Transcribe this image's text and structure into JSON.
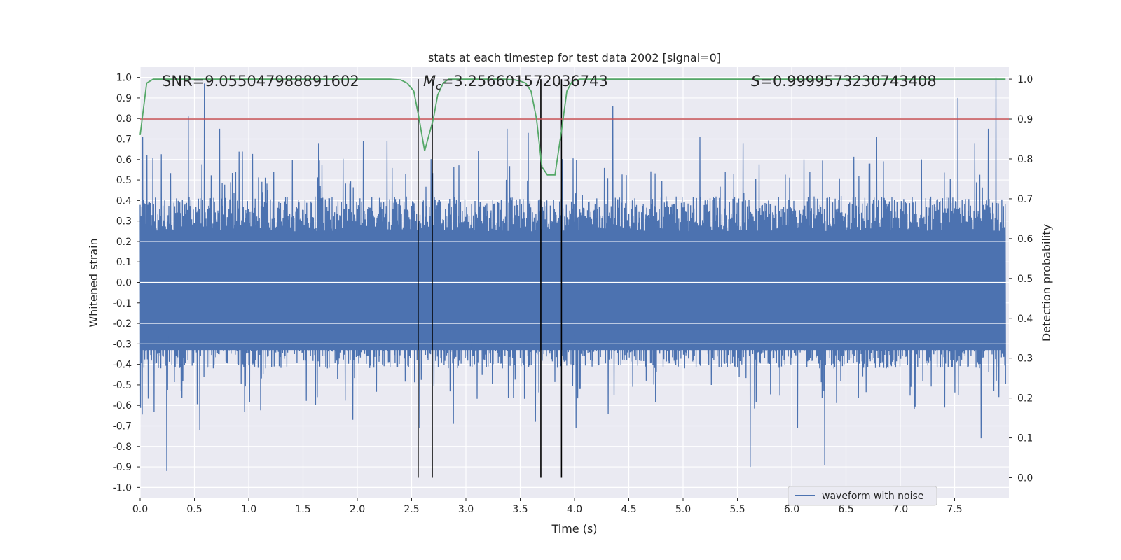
{
  "chart_data": {
    "type": "line",
    "title": "stats at each timestep for test data 2002 [signal=0]",
    "xlabel": "Time (s)",
    "ylabel_left": "Whitened strain",
    "ylabel_right": "Detection probability",
    "xlim": [
      0.0,
      8.0
    ],
    "ylim_left": [
      -1.05,
      1.05
    ],
    "ylim_right": [
      -0.05,
      1.03
    ],
    "x_ticks": [
      "0.0",
      "0.5",
      "1.0",
      "1.5",
      "2.0",
      "2.5",
      "3.0",
      "3.5",
      "4.0",
      "4.5",
      "5.0",
      "5.5",
      "6.0",
      "6.5",
      "7.0",
      "7.5"
    ],
    "x_tick_values": [
      0,
      0.5,
      1,
      1.5,
      2,
      2.5,
      3,
      3.5,
      4,
      4.5,
      5,
      5.5,
      6,
      6.5,
      7,
      7.5
    ],
    "y_left_ticks": [
      "1.0",
      "0.9",
      "0.8",
      "0.7",
      "0.6",
      "0.5",
      "0.4",
      "0.3",
      "0.2",
      "0.1",
      "0.0",
      "-0.1",
      "-0.2",
      "-0.3",
      "-0.4",
      "-0.5",
      "-0.6",
      "-0.7",
      "-0.8",
      "-0.9",
      "-1.0"
    ],
    "y_left_tick_values": [
      1.0,
      0.9,
      0.8,
      0.7,
      0.6,
      0.5,
      0.4,
      0.3,
      0.2,
      0.1,
      0.0,
      -0.1,
      -0.2,
      -0.3,
      -0.4,
      -0.5,
      -0.6,
      -0.7,
      -0.8,
      -0.9,
      -1.0
    ],
    "y_right_ticks": [
      "1.0",
      "0.9",
      "0.8",
      "0.7",
      "0.6",
      "0.5",
      "0.4",
      "0.3",
      "0.2",
      "0.1",
      "0.0"
    ],
    "y_right_tick_values": [
      1.0,
      0.9,
      0.8,
      0.7,
      0.6,
      0.5,
      0.4,
      0.3,
      0.2,
      0.1,
      0.0
    ],
    "stats": {
      "snr": "SNR=9.055047988891602",
      "mc_symbol": "M",
      "mc_sub": "c",
      "mc_value": "=3.256601572036743",
      "s_symbol": "S",
      "s_value": "=0.9999573230743408"
    },
    "threshold": {
      "name": "detection threshold",
      "y_right": 0.9,
      "color": "#c44e52"
    },
    "detection_windows": [
      [
        2.56,
        2.69
      ],
      [
        3.69,
        3.88
      ]
    ],
    "waveform": {
      "name": "waveform with noise",
      "color": "#4c72b0",
      "n_samples": 2048,
      "envelope_upper": 0.41,
      "envelope_lower": -0.41,
      "spikes": [
        [
          0.02,
          0.71
        ],
        [
          0.06,
          0.62
        ],
        [
          0.24,
          -0.92
        ],
        [
          0.44,
          0.81
        ],
        [
          0.59,
          0.97
        ],
        [
          0.55,
          -0.72
        ],
        [
          0.73,
          0.75
        ],
        [
          1.96,
          -0.67
        ],
        [
          2.27,
          0.69
        ],
        [
          2.57,
          -0.71
        ],
        [
          2.88,
          -0.69
        ],
        [
          3.57,
          0.73
        ],
        [
          3.64,
          -0.68
        ],
        [
          4.35,
          0.86
        ],
        [
          5.62,
          -0.9
        ],
        [
          5.55,
          0.68
        ],
        [
          6.3,
          -0.89
        ],
        [
          7.53,
          0.9
        ],
        [
          7.88,
          1.0
        ],
        [
          7.81,
          0.75
        ],
        [
          7.74,
          -0.76
        ],
        [
          7.68,
          0.68
        ],
        [
          5.15,
          0.71
        ],
        [
          3.38,
          0.75
        ],
        [
          1.64,
          0.68
        ],
        [
          6.05,
          -0.71
        ],
        [
          4.01,
          -0.71
        ],
        [
          2.05,
          0.69
        ],
        [
          0.13,
          -0.63
        ],
        [
          6.78,
          0.71
        ]
      ]
    },
    "probability": {
      "name": "detection probability",
      "color": "#55a868",
      "x": [
        0.0,
        0.06,
        0.12,
        0.5,
        1.0,
        1.5,
        2.0,
        2.3,
        2.4,
        2.46,
        2.52,
        2.57,
        2.62,
        2.66,
        2.7,
        2.74,
        2.79,
        2.84,
        2.92,
        3.1,
        3.35,
        3.45,
        3.5,
        3.55,
        3.6,
        3.65,
        3.7,
        3.75,
        3.82,
        3.88,
        3.93,
        3.98,
        4.05,
        4.3,
        5.0,
        6.0,
        7.0,
        7.97
      ],
      "y": [
        0.86,
        0.99,
        1.0,
        1.0,
        1.0,
        1.0,
        1.0,
        1.0,
        0.998,
        0.99,
        0.97,
        0.9,
        0.82,
        0.86,
        0.9,
        0.96,
        0.99,
        1.0,
        1.0,
        1.0,
        1.0,
        0.998,
        0.995,
        0.99,
        0.97,
        0.9,
        0.78,
        0.76,
        0.76,
        0.87,
        0.97,
        0.995,
        1.0,
        1.0,
        1.0,
        1.0,
        1.0,
        1.0
      ]
    },
    "legend": {
      "label": "waveform with noise",
      "position": "lower-right"
    },
    "grid": true
  }
}
